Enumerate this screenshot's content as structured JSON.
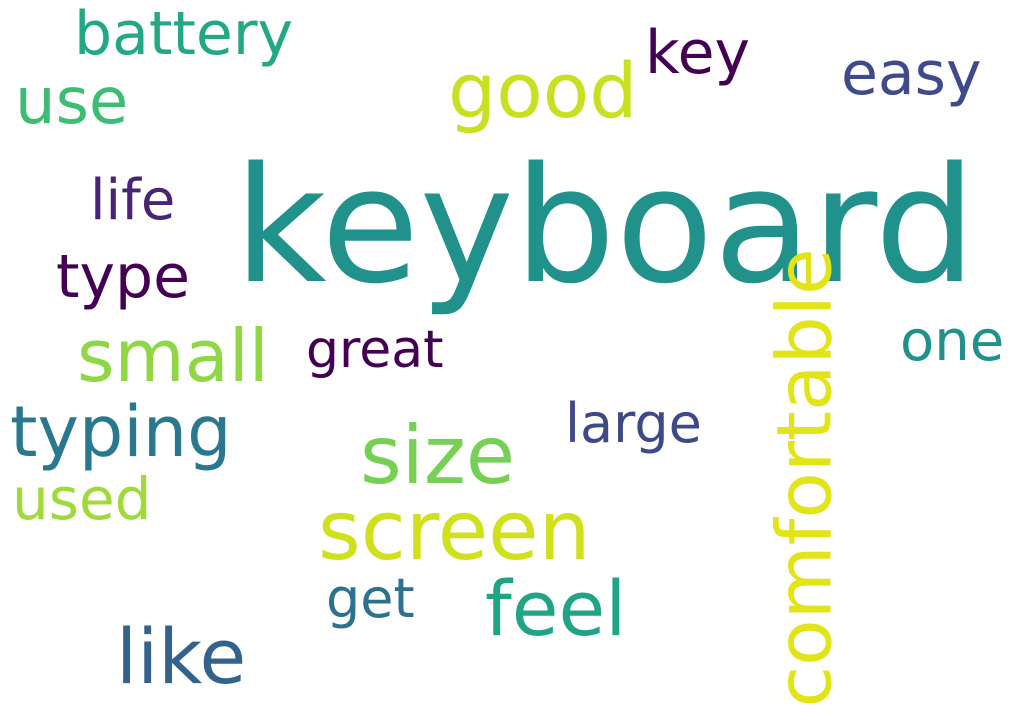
{
  "word_cloud": {
    "words": [
      {
        "text": "keyboard",
        "color": "#21918c"
      },
      {
        "text": "comfortable",
        "color": "#e2e418"
      },
      {
        "text": "screen",
        "color": "#d0e11c"
      },
      {
        "text": "size",
        "color": "#75d054"
      },
      {
        "text": "good",
        "color": "#c8e020"
      },
      {
        "text": "typing",
        "color": "#2a788e"
      },
      {
        "text": "feel",
        "color": "#20a486"
      },
      {
        "text": "like",
        "color": "#33638d"
      },
      {
        "text": "small",
        "color": "#8fd744"
      },
      {
        "text": "battery",
        "color": "#22a884"
      },
      {
        "text": "use",
        "color": "#3dbc74"
      },
      {
        "text": "easy",
        "color": "#3e4a89"
      },
      {
        "text": "key",
        "color": "#440154"
      },
      {
        "text": "type",
        "color": "#440154"
      },
      {
        "text": "life",
        "color": "#482475"
      },
      {
        "text": "great",
        "color": "#440154"
      },
      {
        "text": "one",
        "color": "#21918c"
      },
      {
        "text": "large",
        "color": "#3e4989"
      },
      {
        "text": "used",
        "color": "#a0da39"
      },
      {
        "text": "get",
        "color": "#2c728e"
      }
    ]
  }
}
